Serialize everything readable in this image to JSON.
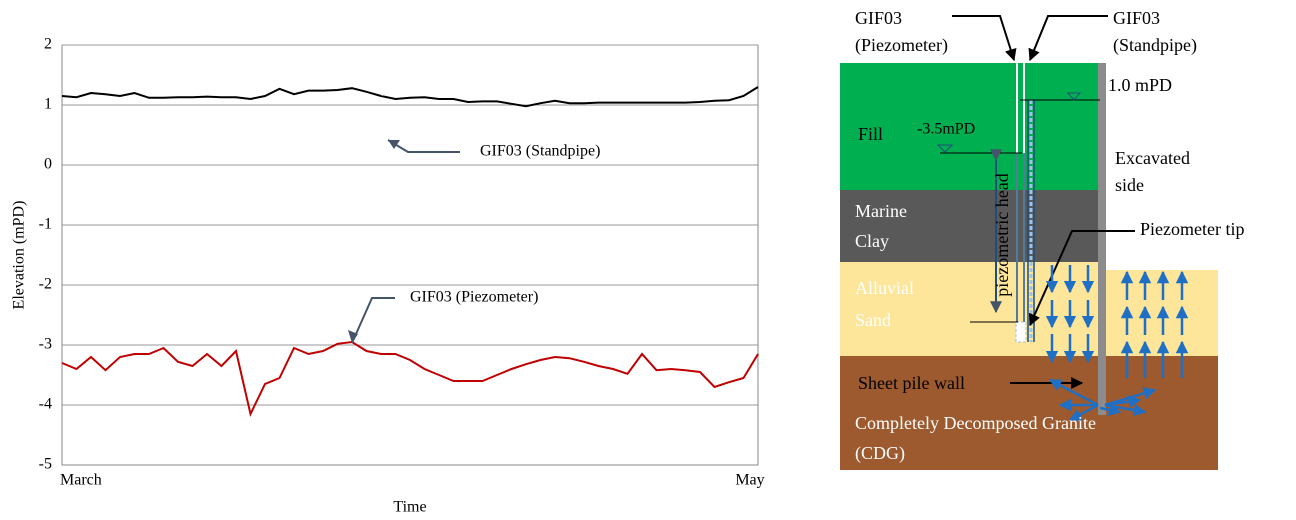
{
  "chart_data": {
    "type": "line",
    "x_label": "Time",
    "y_label": "Elevation (mPD)",
    "categories": [
      "March",
      null,
      null,
      null,
      null,
      null,
      null,
      null,
      null,
      null,
      null,
      null,
      null,
      null,
      null,
      null,
      null,
      null,
      null,
      null,
      null,
      null,
      null,
      null,
      null,
      null,
      null,
      null,
      null,
      null,
      null,
      null,
      null,
      null,
      null,
      null,
      null,
      null,
      null,
      null,
      null,
      null,
      null,
      null,
      null,
      null,
      null,
      null,
      "May"
    ],
    "series": [
      {
        "name": "GIF03 (Standpipe)",
        "color": "#000000",
        "values": [
          1.15,
          1.13,
          1.2,
          1.18,
          1.15,
          1.2,
          1.12,
          1.12,
          1.13,
          1.13,
          1.14,
          1.13,
          1.13,
          1.1,
          1.15,
          1.27,
          1.18,
          1.24,
          1.24,
          1.25,
          1.28,
          1.22,
          1.15,
          1.1,
          1.12,
          1.13,
          1.1,
          1.1,
          1.05,
          1.06,
          1.06,
          1.02,
          0.98,
          1.03,
          1.07,
          1.03,
          1.03,
          1.04,
          1.04,
          1.04,
          1.04,
          1.04,
          1.04,
          1.04,
          1.05,
          1.07,
          1.08,
          1.15,
          1.3
        ]
      },
      {
        "name": "GIF03 (Piezometer)",
        "color": "#c00000",
        "values": [
          -3.3,
          -3.4,
          -3.2,
          -3.42,
          -3.2,
          -3.15,
          -3.15,
          -3.05,
          -3.28,
          -3.35,
          -3.15,
          -3.35,
          -3.1,
          -4.15,
          -3.65,
          -3.55,
          -3.05,
          -3.15,
          -3.1,
          -2.98,
          -2.95,
          -3.1,
          -3.15,
          -3.15,
          -3.25,
          -3.4,
          -3.5,
          -3.6,
          -3.6,
          -3.6,
          -3.5,
          -3.4,
          -3.32,
          -3.25,
          -3.2,
          -3.22,
          -3.28,
          -3.35,
          -3.4,
          -3.48,
          -3.15,
          -3.42,
          -3.4,
          -3.42,
          -3.45,
          -3.7,
          -3.62,
          -3.55,
          -3.15
        ]
      }
    ],
    "ylim": [
      -5,
      2
    ],
    "yticks": [
      2,
      1,
      0,
      -1,
      -2,
      -3,
      -4,
      -5
    ],
    "grid": true
  },
  "diagram": {
    "piezometer_label": [
      "GIF03",
      "(Piezometer)"
    ],
    "standpipe_label": [
      "GIF03",
      "(Standpipe)"
    ],
    "standpipe_level": "1.0 mPD",
    "piezometer_level": "-3.5mPD",
    "fill": "Fill",
    "marine_clay": [
      "Marine",
      "Clay"
    ],
    "alluvial_sand": [
      "Alluvial",
      "Sand"
    ],
    "excavated_side": [
      "Excavated",
      "side"
    ],
    "piezometric_head": "piezometric head",
    "piezometer_tip": "Piezometer tip",
    "sheet_pile_wall": "Sheet pile wall",
    "cdg": [
      "Completely Decomposed Granite",
      "(CDG)"
    ]
  }
}
